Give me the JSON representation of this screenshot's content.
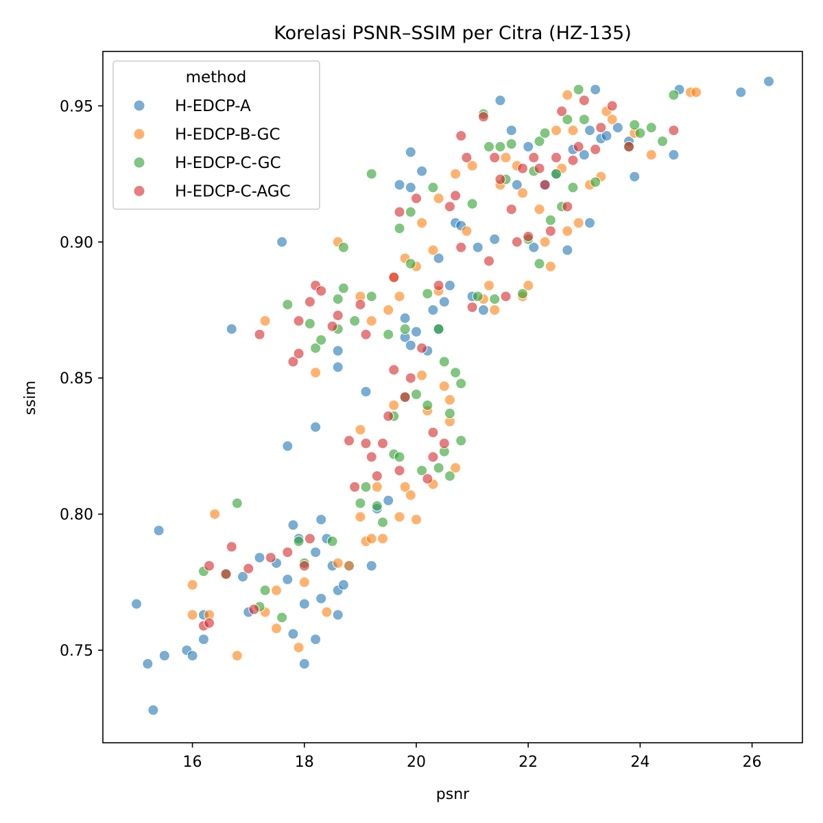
{
  "chart_data": {
    "type": "scatter",
    "title": "Korelasi PSNR–SSIM per Citra (HZ-135)",
    "xlabel": "psnr",
    "ylabel": "ssim",
    "xlim": [
      14.4,
      26.9
    ],
    "ylim": [
      0.716,
      0.97
    ],
    "xticks": [
      16,
      18,
      20,
      22,
      24,
      26
    ],
    "yticks": [
      0.75,
      0.8,
      0.85,
      0.9,
      0.95
    ],
    "ytick_labels": [
      "0.75",
      "0.80",
      "0.85",
      "0.90",
      "0.95"
    ],
    "grid": false,
    "legend": {
      "title": "method",
      "placement": "top-left"
    },
    "series": [
      {
        "name": "H-EDCP-A",
        "color": "#1f77b4",
        "points": [
          [
            15.0,
            0.767
          ],
          [
            15.2,
            0.745
          ],
          [
            15.3,
            0.728
          ],
          [
            15.4,
            0.794
          ],
          [
            15.5,
            0.748
          ],
          [
            15.9,
            0.75
          ],
          [
            16.0,
            0.748
          ],
          [
            16.2,
            0.754
          ],
          [
            16.2,
            0.763
          ],
          [
            16.9,
            0.777
          ],
          [
            17.0,
            0.764
          ],
          [
            17.2,
            0.784
          ],
          [
            17.5,
            0.782
          ],
          [
            17.7,
            0.825
          ],
          [
            17.7,
            0.776
          ],
          [
            17.8,
            0.796
          ],
          [
            17.8,
            0.756
          ],
          [
            17.9,
            0.791
          ],
          [
            18.0,
            0.745
          ],
          [
            18.0,
            0.767
          ],
          [
            18.2,
            0.754
          ],
          [
            18.2,
            0.786
          ],
          [
            18.2,
            0.832
          ],
          [
            18.3,
            0.798
          ],
          [
            18.3,
            0.769
          ],
          [
            18.4,
            0.791
          ],
          [
            18.5,
            0.781
          ],
          [
            18.6,
            0.763
          ],
          [
            18.6,
            0.772
          ],
          [
            18.7,
            0.774
          ],
          [
            18.8,
            0.781
          ],
          [
            18.6,
            0.854
          ],
          [
            18.6,
            0.86
          ],
          [
            17.6,
            0.9
          ],
          [
            16.7,
            0.868
          ],
          [
            19.1,
            0.845
          ],
          [
            19.2,
            0.781
          ],
          [
            19.3,
            0.802
          ],
          [
            19.5,
            0.805
          ],
          [
            19.7,
            0.921
          ],
          [
            19.8,
            0.865
          ],
          [
            19.9,
            0.92
          ],
          [
            19.9,
            0.933
          ],
          [
            19.8,
            0.872
          ],
          [
            19.9,
            0.862
          ],
          [
            20.0,
            0.867
          ],
          [
            20.1,
            0.926
          ],
          [
            20.2,
            0.86
          ],
          [
            20.3,
            0.875
          ],
          [
            20.4,
            0.868
          ],
          [
            20.4,
            0.894
          ],
          [
            20.5,
            0.878
          ],
          [
            20.6,
            0.884
          ],
          [
            20.7,
            0.907
          ],
          [
            20.8,
            0.906
          ],
          [
            21.0,
            0.88
          ],
          [
            21.1,
            0.898
          ],
          [
            21.2,
            0.875
          ],
          [
            21.4,
            0.901
          ],
          [
            21.5,
            0.952
          ],
          [
            21.7,
            0.941
          ],
          [
            21.8,
            0.921
          ],
          [
            22.0,
            0.935
          ],
          [
            22.1,
            0.898
          ],
          [
            22.3,
            0.921
          ],
          [
            22.5,
            0.925
          ],
          [
            22.7,
            0.897
          ],
          [
            22.8,
            0.934
          ],
          [
            23.0,
            0.932
          ],
          [
            23.1,
            0.941
          ],
          [
            23.1,
            0.907
          ],
          [
            23.2,
            0.956
          ],
          [
            23.3,
            0.938
          ],
          [
            23.4,
            0.939
          ],
          [
            23.6,
            0.942
          ],
          [
            23.8,
            0.937
          ],
          [
            23.9,
            0.924
          ],
          [
            24.6,
            0.932
          ],
          [
            24.7,
            0.956
          ],
          [
            25.8,
            0.955
          ],
          [
            26.3,
            0.959
          ]
        ]
      },
      {
        "name": "H-EDCP-B-GC",
        "color": "#ff7f0e",
        "points": [
          [
            16.0,
            0.774
          ],
          [
            16.0,
            0.763
          ],
          [
            16.3,
            0.763
          ],
          [
            16.4,
            0.8
          ],
          [
            16.8,
            0.748
          ],
          [
            17.3,
            0.764
          ],
          [
            17.3,
            0.871
          ],
          [
            17.5,
            0.772
          ],
          [
            17.5,
            0.758
          ],
          [
            17.9,
            0.751
          ],
          [
            18.0,
            0.775
          ],
          [
            18.2,
            0.852
          ],
          [
            18.4,
            0.764
          ],
          [
            18.6,
            0.782
          ],
          [
            18.6,
            0.9
          ],
          [
            18.8,
            0.781
          ],
          [
            19.0,
            0.799
          ],
          [
            19.0,
            0.831
          ],
          [
            19.0,
            0.88
          ],
          [
            19.1,
            0.79
          ],
          [
            19.2,
            0.791
          ],
          [
            19.2,
            0.871
          ],
          [
            19.3,
            0.81
          ],
          [
            19.4,
            0.791
          ],
          [
            19.5,
            0.875
          ],
          [
            19.6,
            0.887
          ],
          [
            19.6,
            0.84
          ],
          [
            19.7,
            0.799
          ],
          [
            19.7,
            0.88
          ],
          [
            19.8,
            0.81
          ],
          [
            19.8,
            0.894
          ],
          [
            19.9,
            0.807
          ],
          [
            20.0,
            0.798
          ],
          [
            20.0,
            0.891
          ],
          [
            20.1,
            0.851
          ],
          [
            20.1,
            0.907
          ],
          [
            20.2,
            0.838
          ],
          [
            20.3,
            0.811
          ],
          [
            20.3,
            0.897
          ],
          [
            20.4,
            0.882
          ],
          [
            20.4,
            0.916
          ],
          [
            20.5,
            0.847
          ],
          [
            20.6,
            0.834
          ],
          [
            20.6,
            0.842
          ],
          [
            20.7,
            0.817
          ],
          [
            20.7,
            0.925
          ],
          [
            20.9,
            0.904
          ],
          [
            21.0,
            0.928
          ],
          [
            21.2,
            0.879
          ],
          [
            21.3,
            0.884
          ],
          [
            21.4,
            0.875
          ],
          [
            21.5,
            0.921
          ],
          [
            21.6,
            0.931
          ],
          [
            21.8,
            0.928
          ],
          [
            21.9,
            0.88
          ],
          [
            21.9,
            0.918
          ],
          [
            22.0,
            0.884
          ],
          [
            22.2,
            0.912
          ],
          [
            22.3,
            0.9
          ],
          [
            22.4,
            0.891
          ],
          [
            22.5,
            0.941
          ],
          [
            22.6,
            0.927
          ],
          [
            22.7,
            0.904
          ],
          [
            22.8,
            0.941
          ],
          [
            22.9,
            0.907
          ],
          [
            23.1,
            0.921
          ],
          [
            23.3,
            0.924
          ],
          [
            23.4,
            0.948
          ],
          [
            23.5,
            0.945
          ],
          [
            23.9,
            0.94
          ],
          [
            24.2,
            0.932
          ],
          [
            24.9,
            0.955
          ],
          [
            25.0,
            0.955
          ],
          [
            22.7,
            0.954
          ]
        ]
      },
      {
        "name": "H-EDCP-C-GC",
        "color": "#2ca02c",
        "points": [
          [
            16.2,
            0.779
          ],
          [
            16.6,
            0.778
          ],
          [
            16.8,
            0.804
          ],
          [
            17.2,
            0.766
          ],
          [
            17.3,
            0.772
          ],
          [
            17.6,
            0.762
          ],
          [
            17.7,
            0.877
          ],
          [
            17.9,
            0.79
          ],
          [
            18.0,
            0.782
          ],
          [
            18.1,
            0.87
          ],
          [
            18.2,
            0.861
          ],
          [
            18.3,
            0.864
          ],
          [
            18.5,
            0.79
          ],
          [
            18.6,
            0.879
          ],
          [
            18.6,
            0.868
          ],
          [
            18.7,
            0.898
          ],
          [
            18.7,
            0.883
          ],
          [
            18.9,
            0.871
          ],
          [
            19.0,
            0.804
          ],
          [
            19.1,
            0.81
          ],
          [
            19.2,
            0.925
          ],
          [
            19.2,
            0.88
          ],
          [
            19.3,
            0.803
          ],
          [
            19.4,
            0.797
          ],
          [
            19.5,
            0.866
          ],
          [
            19.6,
            0.836
          ],
          [
            19.6,
            0.822
          ],
          [
            19.7,
            0.905
          ],
          [
            19.7,
            0.821
          ],
          [
            19.8,
            0.843
          ],
          [
            19.8,
            0.868
          ],
          [
            19.9,
            0.911
          ],
          [
            19.9,
            0.892
          ],
          [
            20.0,
            0.844
          ],
          [
            20.1,
            0.816
          ],
          [
            20.2,
            0.84
          ],
          [
            20.2,
            0.881
          ],
          [
            20.3,
            0.92
          ],
          [
            20.4,
            0.817
          ],
          [
            20.4,
            0.868
          ],
          [
            20.5,
            0.823
          ],
          [
            20.5,
            0.856
          ],
          [
            20.6,
            0.814
          ],
          [
            20.6,
            0.837
          ],
          [
            20.7,
            0.852
          ],
          [
            20.8,
            0.848
          ],
          [
            20.8,
            0.827
          ],
          [
            21.0,
            0.914
          ],
          [
            21.1,
            0.88
          ],
          [
            21.2,
            0.947
          ],
          [
            21.3,
            0.935
          ],
          [
            21.4,
            0.879
          ],
          [
            21.5,
            0.935
          ],
          [
            21.6,
            0.923
          ],
          [
            21.7,
            0.936
          ],
          [
            21.9,
            0.881
          ],
          [
            22.0,
            0.901
          ],
          [
            22.1,
            0.926
          ],
          [
            22.2,
            0.892
          ],
          [
            22.2,
            0.937
          ],
          [
            22.3,
            0.94
          ],
          [
            22.4,
            0.908
          ],
          [
            22.5,
            0.925
          ],
          [
            22.6,
            0.913
          ],
          [
            22.7,
            0.945
          ],
          [
            22.8,
            0.92
          ],
          [
            22.9,
            0.956
          ],
          [
            23.0,
            0.945
          ],
          [
            23.2,
            0.922
          ],
          [
            23.8,
            0.935
          ],
          [
            23.9,
            0.943
          ],
          [
            24.0,
            0.94
          ],
          [
            24.2,
            0.942
          ],
          [
            24.4,
            0.937
          ],
          [
            24.6,
            0.954
          ]
        ]
      },
      {
        "name": "H-EDCP-C-AGC",
        "color": "#d62728",
        "points": [
          [
            16.2,
            0.759
          ],
          [
            16.3,
            0.76
          ],
          [
            16.3,
            0.781
          ],
          [
            16.6,
            0.778
          ],
          [
            16.7,
            0.788
          ],
          [
            17.0,
            0.78
          ],
          [
            17.1,
            0.765
          ],
          [
            17.2,
            0.866
          ],
          [
            17.4,
            0.784
          ],
          [
            17.7,
            0.786
          ],
          [
            17.8,
            0.856
          ],
          [
            17.9,
            0.859
          ],
          [
            17.9,
            0.871
          ],
          [
            18.0,
            0.781
          ],
          [
            18.1,
            0.878
          ],
          [
            18.1,
            0.791
          ],
          [
            18.2,
            0.884
          ],
          [
            18.3,
            0.882
          ],
          [
            18.5,
            0.869
          ],
          [
            18.6,
            0.873
          ],
          [
            18.8,
            0.827
          ],
          [
            18.9,
            0.81
          ],
          [
            19.0,
            0.877
          ],
          [
            19.1,
            0.826
          ],
          [
            19.1,
            0.866
          ],
          [
            19.2,
            0.821
          ],
          [
            19.3,
            0.814
          ],
          [
            19.4,
            0.826
          ],
          [
            19.5,
            0.836
          ],
          [
            19.6,
            0.853
          ],
          [
            19.6,
            0.887
          ],
          [
            19.7,
            0.911
          ],
          [
            19.7,
            0.816
          ],
          [
            19.8,
            0.843
          ],
          [
            19.9,
            0.85
          ],
          [
            20.0,
            0.916
          ],
          [
            20.1,
            0.861
          ],
          [
            20.2,
            0.813
          ],
          [
            20.3,
            0.821
          ],
          [
            20.3,
            0.83
          ],
          [
            20.4,
            0.884
          ],
          [
            20.5,
            0.826
          ],
          [
            20.6,
            0.913
          ],
          [
            20.7,
            0.917
          ],
          [
            20.8,
            0.898
          ],
          [
            20.9,
            0.931
          ],
          [
            21.0,
            0.876
          ],
          [
            21.2,
            0.946
          ],
          [
            21.3,
            0.893
          ],
          [
            21.4,
            0.931
          ],
          [
            21.5,
            0.923
          ],
          [
            21.6,
            0.88
          ],
          [
            21.7,
            0.912
          ],
          [
            21.8,
            0.9
          ],
          [
            21.9,
            0.927
          ],
          [
            22.0,
            0.902
          ],
          [
            22.1,
            0.931
          ],
          [
            22.2,
            0.927
          ],
          [
            22.3,
            0.921
          ],
          [
            22.4,
            0.904
          ],
          [
            22.5,
            0.931
          ],
          [
            22.6,
            0.948
          ],
          [
            22.7,
            0.913
          ],
          [
            22.8,
            0.93
          ],
          [
            22.9,
            0.935
          ],
          [
            23.0,
            0.952
          ],
          [
            23.2,
            0.934
          ],
          [
            23.3,
            0.942
          ],
          [
            23.5,
            0.95
          ],
          [
            23.8,
            0.935
          ],
          [
            24.6,
            0.941
          ],
          [
            20.8,
            0.939
          ]
        ]
      }
    ]
  }
}
